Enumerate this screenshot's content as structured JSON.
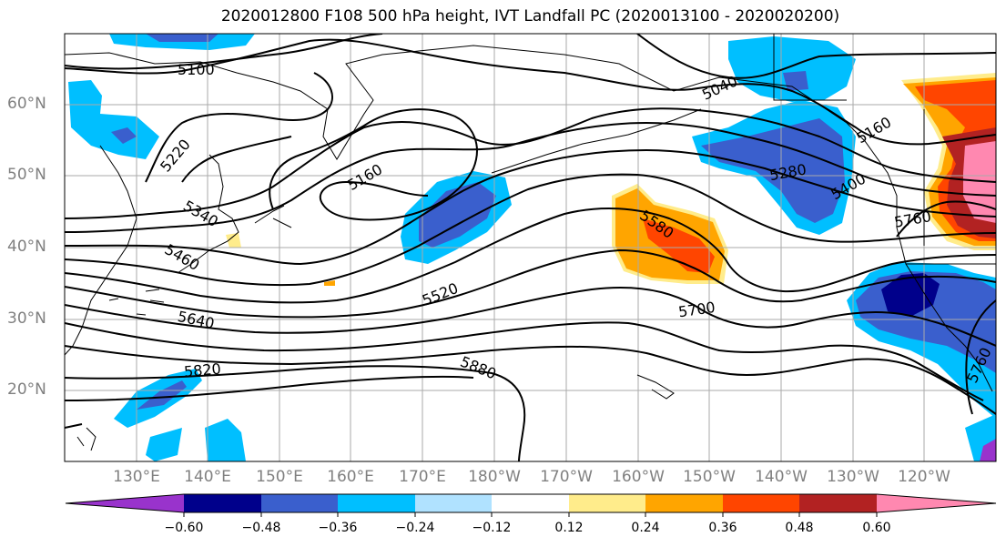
{
  "title": "2020012800 F108 500 hPa height, IVT Landfall PC (2020013100 - 2020020200)",
  "lat_labels": [
    "60°N",
    "50°N",
    "40°N",
    "30°N",
    "20°N"
  ],
  "lon_labels": [
    "130°E",
    "140°E",
    "150°E",
    "160°E",
    "170°E",
    "180°W",
    "170°W",
    "160°W",
    "150°W",
    "140°W",
    "130°W",
    "120°W"
  ],
  "contour_labels": [
    "5100",
    "5040",
    "5160",
    "5220",
    "5160",
    "5340",
    "5280",
    "5400",
    "5460",
    "5580",
    "5760",
    "5520",
    "5640",
    "5700",
    "5820",
    "5880",
    "5760"
  ],
  "colorbar": {
    "tick_labels": [
      "−0.60",
      "−0.48",
      "−0.36",
      "−0.24",
      "−0.12",
      "0.12",
      "0.24",
      "0.36",
      "0.48",
      "0.60"
    ],
    "colors": [
      "#9933cc",
      "#00008b",
      "#3a5fcd",
      "#00bfff",
      "#b0e2ff",
      "#ffffff",
      "#ffec8b",
      "#ffa500",
      "#ff4500",
      "#b22222",
      "#ff88b0"
    ]
  }
}
